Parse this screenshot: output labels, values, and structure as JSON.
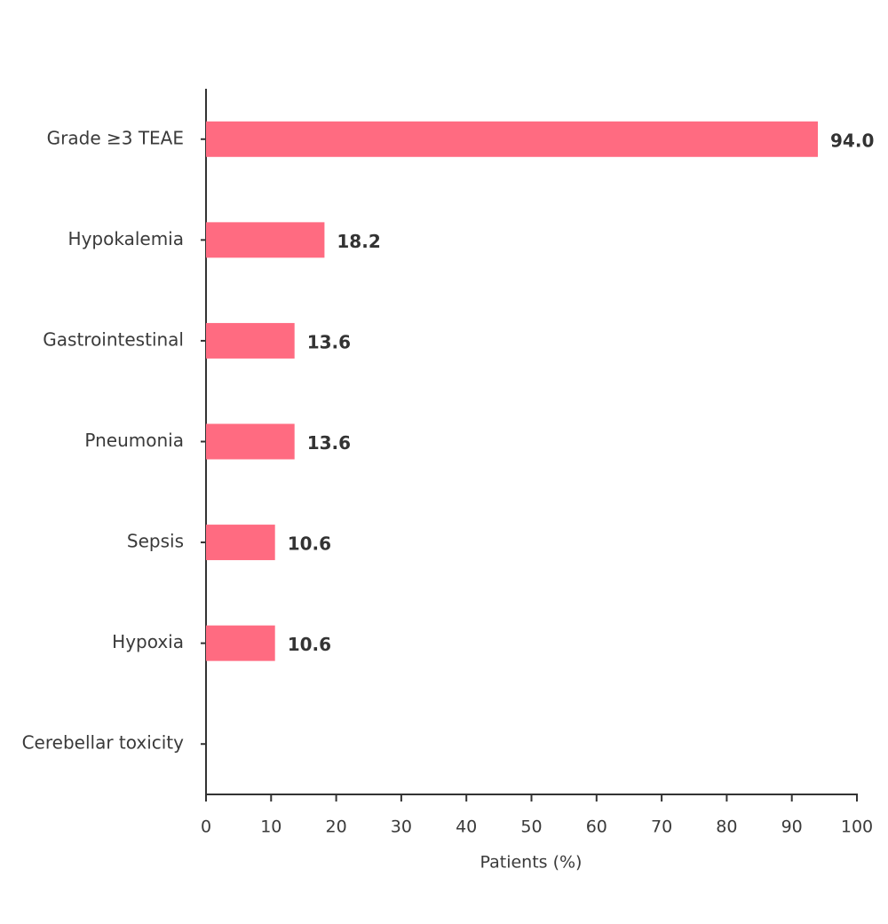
{
  "chart_data": {
    "type": "bar",
    "orientation": "horizontal",
    "x_label": "Patients (%)",
    "categories": [
      "Grade ≥3 TEAE",
      "Hypokalemia",
      "Gastrointestinal",
      "Pneumonia",
      "Sepsis",
      "Hypoxia",
      "Cerebellar toxicity"
    ],
    "values": [
      94.0,
      18.2,
      13.6,
      13.6,
      10.6,
      10.6,
      null
    ],
    "value_labels": [
      "94.0",
      "18.2",
      "13.6",
      "13.6",
      "10.6",
      "10.6",
      null
    ],
    "color": "#ff6b81",
    "xlim": [
      0,
      100
    ],
    "xticks": [
      0,
      10,
      20,
      30,
      40,
      50,
      60,
      70,
      80,
      90,
      100
    ],
    "grid": false
  }
}
